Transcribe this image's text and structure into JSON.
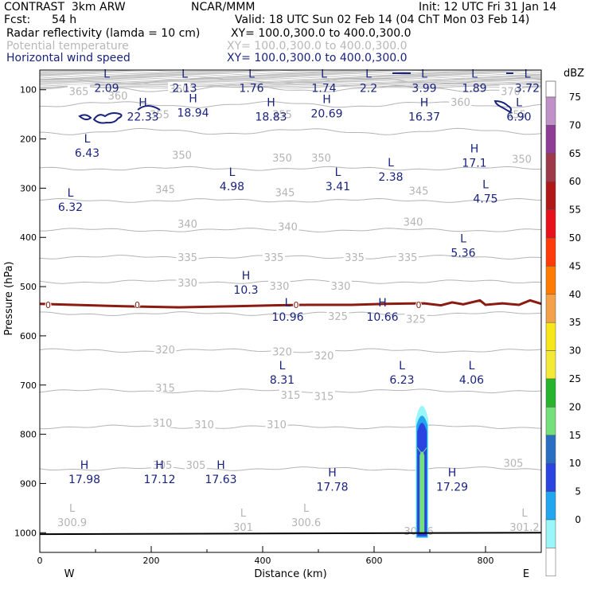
{
  "header": {
    "model": "CONTRAST  3km ARW",
    "org": "NCAR/MMM",
    "init": "Init: 12 UTC Fri 31 Jan 14",
    "fcst_label": "Fcst:",
    "fcst_value": "54 h",
    "valid": "Valid: 18 UTC Sun 02 Feb 14 (04 ChT Mon 03 Feb 14)"
  },
  "legend_lines": [
    {
      "label": "Radar reflectivity (lamda = 10 cm)",
      "xy": "XY= 100.0,300.0 to 400.0,300.0",
      "color": "#000000"
    },
    {
      "label": "Potential temperature",
      "xy": "XY= 100.0,300.0 to 400.0,300.0",
      "color": "#b8b8b8"
    },
    {
      "label": "Horizontal wind speed",
      "xy": "XY= 100.0,300.0 to 400.0,300.0",
      "color": "#1a237e"
    }
  ],
  "chart_data": {
    "type": "cross-section",
    "xlabel": "Distance (km)",
    "ylabel": "Pressure (hPa)",
    "xlim": [
      0,
      900
    ],
    "ylim": [
      1040,
      60
    ],
    "x_ticks": [
      "0",
      "200",
      "400",
      "600",
      "800"
    ],
    "x_tick_values": [
      0,
      200,
      400,
      600,
      800
    ],
    "y_ticks": [
      "100",
      "200",
      "300",
      "400",
      "500",
      "600",
      "700",
      "800",
      "900",
      "1000"
    ],
    "y_tick_values": [
      100,
      200,
      300,
      400,
      500,
      600,
      700,
      800,
      900,
      1000
    ],
    "direction_left": "W",
    "direction_right": "E",
    "colorbar": {
      "unit": "dBZ",
      "levels": [
        "75",
        "70",
        "65",
        "60",
        "55",
        "50",
        "45",
        "40",
        "35",
        "30",
        "25",
        "20",
        "15",
        "10",
        "5",
        "0"
      ],
      "colors": [
        "#c090c8",
        "#8e3c96",
        "#9c3a4a",
        "#b01818",
        "#e8101a",
        "#ff3a0a",
        "#ff7a00",
        "#f4a24a",
        "#f6e61a",
        "#f2ea36",
        "#26b42c",
        "#74e07a",
        "#2a6ec2",
        "#2a44e2",
        "#22a6f0",
        "#9af6f8",
        "#ffffff"
      ]
    },
    "theta_levels": [
      {
        "value": 305,
        "pressure": 870
      },
      {
        "value": 310,
        "pressure": 785
      },
      {
        "value": 315,
        "pressure": 712
      },
      {
        "value": 320,
        "pressure": 630
      },
      {
        "value": 325,
        "pressure": 555
      },
      {
        "value": 330,
        "pressure": 490
      },
      {
        "value": 335,
        "pressure": 440
      },
      {
        "value": 340,
        "pressure": 385
      },
      {
        "value": 345,
        "pressure": 325
      },
      {
        "value": 350,
        "pressure": 260
      },
      {
        "value": 355,
        "pressure": 185
      },
      {
        "value": 360,
        "pressure": 130
      },
      {
        "value": 365,
        "pressure": 98
      },
      {
        "value": 370,
        "pressure": 82
      }
    ],
    "theta_labels": [
      {
        "text": "365",
        "x": 70,
        "p": 103
      },
      {
        "text": "360",
        "x": 140,
        "p": 112
      },
      {
        "text": "360",
        "x": 250,
        "p": 98
      },
      {
        "text": "370",
        "x": 845,
        "p": 103
      },
      {
        "text": "360",
        "x": 755,
        "p": 125
      },
      {
        "text": "355",
        "x": 215,
        "p": 150
      },
      {
        "text": "355",
        "x": 435,
        "p": 150
      },
      {
        "text": "355",
        "x": 855,
        "p": 150
      },
      {
        "text": "350",
        "x": 255,
        "p": 232
      },
      {
        "text": "350",
        "x": 435,
        "p": 238
      },
      {
        "text": "350",
        "x": 505,
        "p": 238
      },
      {
        "text": "350",
        "x": 865,
        "p": 240
      },
      {
        "text": "345",
        "x": 225,
        "p": 302
      },
      {
        "text": "345",
        "x": 440,
        "p": 308
      },
      {
        "text": "345",
        "x": 680,
        "p": 305
      },
      {
        "text": "340",
        "x": 265,
        "p": 372
      },
      {
        "text": "340",
        "x": 445,
        "p": 378
      },
      {
        "text": "340",
        "x": 670,
        "p": 368
      },
      {
        "text": "335",
        "x": 265,
        "p": 440
      },
      {
        "text": "335",
        "x": 420,
        "p": 440
      },
      {
        "text": "335",
        "x": 565,
        "p": 440
      },
      {
        "text": "335",
        "x": 660,
        "p": 440
      },
      {
        "text": "330",
        "x": 265,
        "p": 492
      },
      {
        "text": "330",
        "x": 430,
        "p": 498
      },
      {
        "text": "330",
        "x": 540,
        "p": 498
      },
      {
        "text": "325",
        "x": 535,
        "p": 560
      },
      {
        "text": "325",
        "x": 675,
        "p": 565
      },
      {
        "text": "320",
        "x": 225,
        "p": 628
      },
      {
        "text": "320",
        "x": 435,
        "p": 632
      },
      {
        "text": "320",
        "x": 510,
        "p": 640
      },
      {
        "text": "315",
        "x": 225,
        "p": 705
      },
      {
        "text": "315",
        "x": 450,
        "p": 720
      },
      {
        "text": "315",
        "x": 510,
        "p": 722
      },
      {
        "text": "310",
        "x": 220,
        "p": 776
      },
      {
        "text": "310",
        "x": 295,
        "p": 780
      },
      {
        "text": "310",
        "x": 425,
        "p": 780
      },
      {
        "text": "305",
        "x": 220,
        "p": 862
      },
      {
        "text": "305",
        "x": 280,
        "p": 862
      },
      {
        "text": "305",
        "x": 850,
        "p": 858
      }
    ],
    "freezing_level": {
      "label": "0",
      "points": [
        [
          0,
          535
        ],
        [
          60,
          537
        ],
        [
          150,
          540
        ],
        [
          250,
          542
        ],
        [
          350,
          540
        ],
        [
          420,
          538
        ],
        [
          480,
          537
        ],
        [
          560,
          537
        ],
        [
          620,
          535
        ],
        [
          690,
          534
        ],
        [
          720,
          538
        ],
        [
          740,
          532
        ],
        [
          760,
          536
        ],
        [
          790,
          528
        ],
        [
          800,
          537
        ],
        [
          830,
          534
        ],
        [
          860,
          537
        ],
        [
          880,
          528
        ],
        [
          900,
          535
        ]
      ],
      "label_x": [
        15,
        175,
        460,
        680
      ]
    },
    "wind_labels": [
      {
        "hl": "L",
        "value": "2.09",
        "x": 120,
        "p": 90
      },
      {
        "hl": "L",
        "value": "2.13",
        "x": 260,
        "p": 90
      },
      {
        "hl": "L",
        "value": "1.76",
        "x": 380,
        "p": 90
      },
      {
        "hl": "L",
        "value": "1.74",
        "x": 510,
        "p": 90
      },
      {
        "hl": "L",
        "value": "2.2",
        "x": 590,
        "p": 90
      },
      {
        "hl": "L",
        "value": "3.99",
        "x": 690,
        "p": 90
      },
      {
        "hl": "L",
        "value": "1.89",
        "x": 780,
        "p": 90
      },
      {
        "hl": "L",
        "value": "3.72",
        "x": 875,
        "p": 90
      },
      {
        "hl": "H",
        "value": "22.33",
        "x": 185,
        "p": 148
      },
      {
        "hl": "H",
        "value": "18.94",
        "x": 275,
        "p": 140
      },
      {
        "hl": "H",
        "value": "18.83",
        "x": 415,
        "p": 148
      },
      {
        "hl": "H",
        "value": "20.69",
        "x": 515,
        "p": 142
      },
      {
        "hl": "H",
        "value": "16.37",
        "x": 690,
        "p": 148
      },
      {
        "hl": "L",
        "value": "6.90",
        "x": 860,
        "p": 148
      },
      {
        "hl": "L",
        "value": "6.43",
        "x": 85,
        "p": 222
      },
      {
        "hl": "H",
        "value": "17.1",
        "x": 780,
        "p": 242
      },
      {
        "hl": "L",
        "value": "2.38",
        "x": 630,
        "p": 270
      },
      {
        "hl": "L",
        "value": "4.98",
        "x": 345,
        "p": 290
      },
      {
        "hl": "L",
        "value": "3.41",
        "x": 535,
        "p": 290
      },
      {
        "hl": "L",
        "value": "4.75",
        "x": 800,
        "p": 315
      },
      {
        "hl": "L",
        "value": "6.32",
        "x": 55,
        "p": 332
      },
      {
        "hl": "L",
        "value": "5.36",
        "x": 760,
        "p": 425
      },
      {
        "hl": "H",
        "value": "10.3",
        "x": 370,
        "p": 500
      },
      {
        "hl": "L",
        "value": "10.96",
        "x": 445,
        "p": 555
      },
      {
        "hl": "H",
        "value": "10.66",
        "x": 615,
        "p": 555
      },
      {
        "hl": "L",
        "value": "8.31",
        "x": 435,
        "p": 683
      },
      {
        "hl": "L",
        "value": "6.23",
        "x": 650,
        "p": 683
      },
      {
        "hl": "L",
        "value": "4.06",
        "x": 775,
        "p": 683
      },
      {
        "hl": "H",
        "value": "17.98",
        "x": 80,
        "p": 885
      },
      {
        "hl": "H",
        "value": "17.12",
        "x": 215,
        "p": 885
      },
      {
        "hl": "H",
        "value": "17.63",
        "x": 325,
        "p": 885
      },
      {
        "hl": "H",
        "value": "17.78",
        "x": 525,
        "p": 900
      },
      {
        "hl": "H",
        "value": "17.29",
        "x": 740,
        "p": 900
      }
    ],
    "surface_theta_labels": [
      {
        "hl": "L",
        "value": "300.9",
        "x": 58,
        "p": 972
      },
      {
        "hl": "L",
        "value": "301",
        "x": 365,
        "p": 982
      },
      {
        "hl": "L",
        "value": "300.6",
        "x": 478,
        "p": 972
      },
      {
        "hl": "L",
        "value": "300.6",
        "x": 680,
        "p": 990
      },
      {
        "hl": "L",
        "value": "301.2",
        "x": 870,
        "p": 982
      }
    ],
    "reflectivity_column": {
      "x_center": 686,
      "top_pressure": 730,
      "bottom_pressure": 1010,
      "max_dbz": 20
    }
  }
}
